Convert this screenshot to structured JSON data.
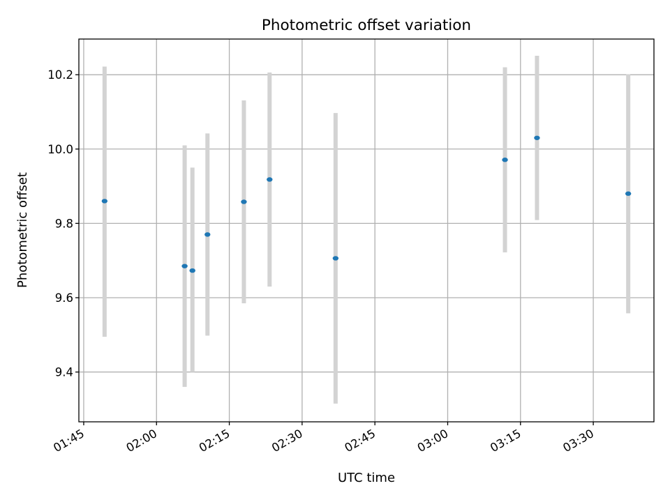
{
  "chart_data": {
    "type": "scatter",
    "title": "Photometric offset variation",
    "xlabel": "UTC time",
    "ylabel": "Photometric offset",
    "x_unit": "minutes after 00:00 UTC",
    "xlim": [
      104.0,
      222.5
    ],
    "ylim": [
      9.266,
      10.296
    ],
    "grid": true,
    "x_ticks": [
      {
        "value": 105,
        "label": "01:45"
      },
      {
        "value": 120,
        "label": "02:00"
      },
      {
        "value": 135,
        "label": "02:15"
      },
      {
        "value": 150,
        "label": "02:30"
      },
      {
        "value": 165,
        "label": "02:45"
      },
      {
        "value": 180,
        "label": "03:00"
      },
      {
        "value": 195,
        "label": "03:15"
      },
      {
        "value": 210,
        "label": "03:30"
      }
    ],
    "y_ticks": [
      {
        "value": 9.4,
        "label": "9.4"
      },
      {
        "value": 9.6,
        "label": "9.6"
      },
      {
        "value": 9.8,
        "label": "9.8"
      },
      {
        "value": 10.0,
        "label": "10.0"
      },
      {
        "value": 10.2,
        "label": "10.2"
      }
    ],
    "series": [
      {
        "name": "Photometric offset",
        "color": "#1f77b4",
        "errorbar_color": "#d3d3d3",
        "points": [
          {
            "x": 109.3,
            "y": 9.86,
            "ylow": 9.495,
            "yhigh": 10.222
          },
          {
            "x": 125.8,
            "y": 9.685,
            "ylow": 9.36,
            "yhigh": 10.01
          },
          {
            "x": 127.4,
            "y": 9.673,
            "ylow": 9.4,
            "yhigh": 9.95
          },
          {
            "x": 130.5,
            "y": 9.77,
            "ylow": 9.498,
            "yhigh": 10.042
          },
          {
            "x": 138.0,
            "y": 9.858,
            "ylow": 9.585,
            "yhigh": 10.131
          },
          {
            "x": 143.3,
            "y": 9.918,
            "ylow": 9.63,
            "yhigh": 10.206
          },
          {
            "x": 156.9,
            "y": 9.706,
            "ylow": 9.315,
            "yhigh": 10.097
          },
          {
            "x": 191.8,
            "y": 9.971,
            "ylow": 9.722,
            "yhigh": 10.22
          },
          {
            "x": 198.4,
            "y": 10.03,
            "ylow": 9.809,
            "yhigh": 10.251
          },
          {
            "x": 217.2,
            "y": 9.88,
            "ylow": 9.558,
            "yhigh": 10.201
          }
        ]
      }
    ]
  }
}
